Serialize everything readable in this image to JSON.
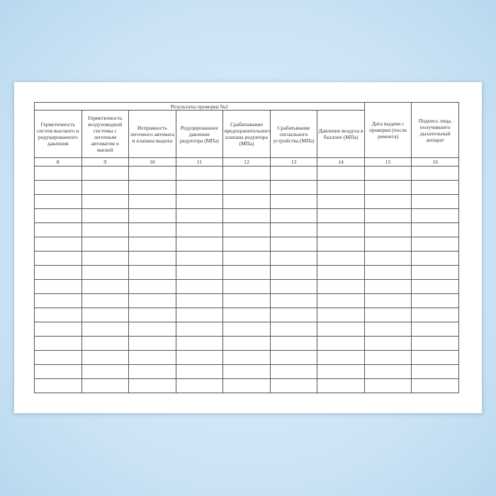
{
  "table": {
    "group_title": "Результаты проверки №2",
    "columns": [
      {
        "header": "Герметичность систем высокого и редуцированного давления",
        "number": "8"
      },
      {
        "header": "Герметичность воздуховодной системы с легочным автоматом и маской",
        "number": "9"
      },
      {
        "header": "Исправность легочного автомата и клапана выдоха",
        "number": "10"
      },
      {
        "header": "Редуцированное давление редуктора (МПа)",
        "number": "11"
      },
      {
        "header": "Срабатывание предохранительного клапана редуктора (МПа)",
        "number": "12"
      },
      {
        "header": "Срабатывание сигнального устройства (МПа)",
        "number": "13"
      },
      {
        "header": "Давление воздуха в баллоне (МПа)",
        "number": "14"
      },
      {
        "header": "Дата выдачи с проверки (после ремонта)",
        "number": "15"
      },
      {
        "header": "Подпись лица, получившего дыхательный аппарат",
        "number": "16"
      }
    ],
    "empty_rows": 16
  }
}
